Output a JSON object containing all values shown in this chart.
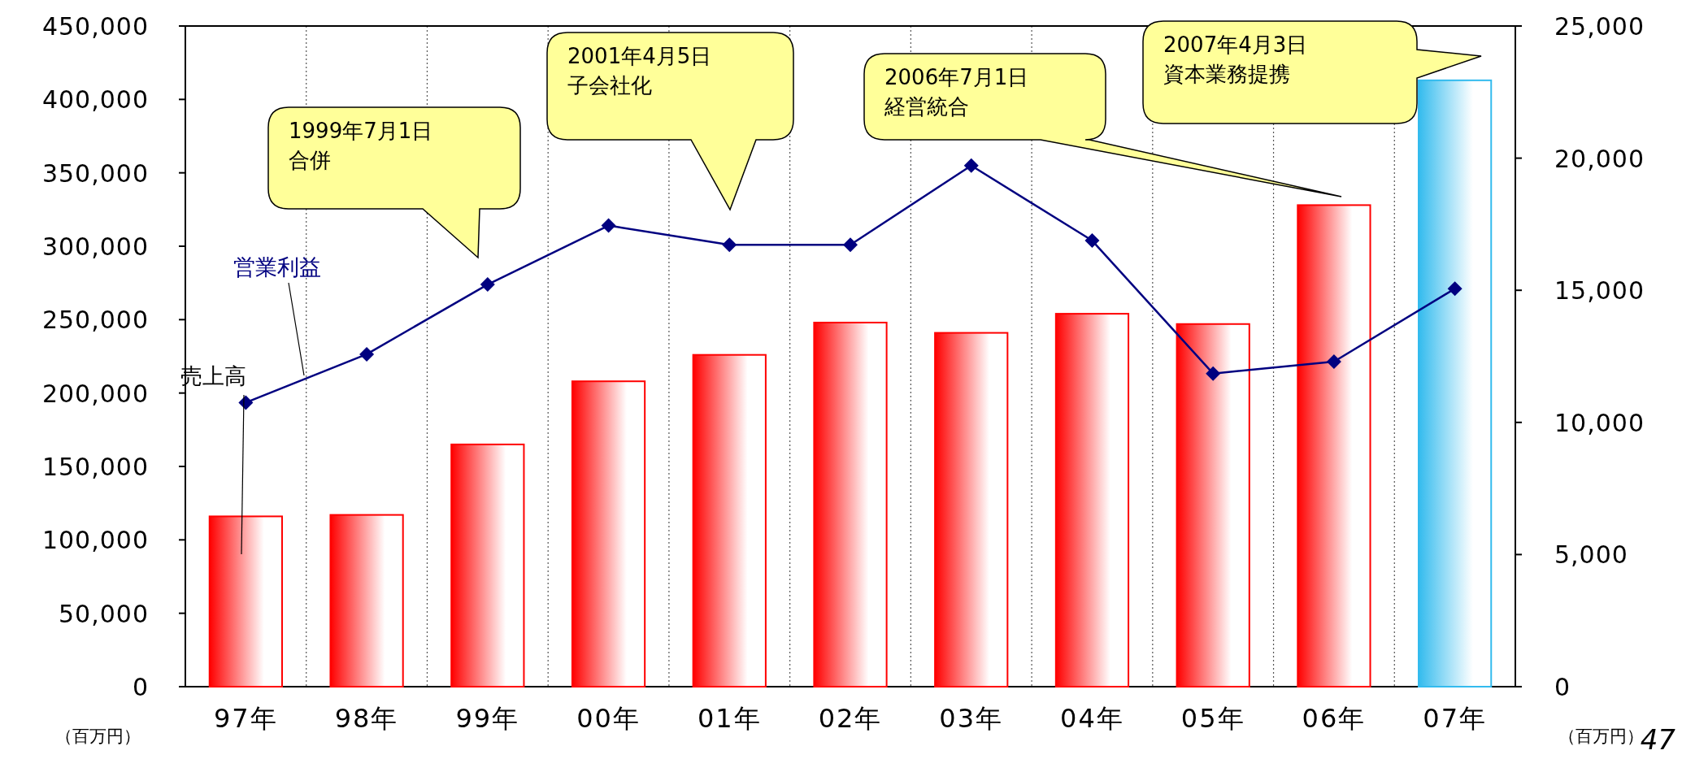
{
  "chart_data": {
    "type": "bar",
    "categories": [
      "97年",
      "98年",
      "99年",
      "00年",
      "01年",
      "02年",
      "03年",
      "04年",
      "05年",
      "06年",
      "07年"
    ],
    "ylabel": "（百万円）",
    "y2label": "（百万円）",
    "ylim": [
      0,
      450000
    ],
    "yticks": [
      {
        "value": 0,
        "label": "0"
      },
      {
        "value": 50000,
        "label": "50,000"
      },
      {
        "value": 100000,
        "label": "100,000"
      },
      {
        "value": 150000,
        "label": "150,000"
      },
      {
        "value": 200000,
        "label": "200,000"
      },
      {
        "value": 250000,
        "label": "250,000"
      },
      {
        "value": 300000,
        "label": "300,000"
      },
      {
        "value": 350000,
        "label": "350,000"
      },
      {
        "value": 400000,
        "label": "400,000"
      },
      {
        "value": 450000,
        "label": "450,000"
      }
    ],
    "y2lim": [
      0,
      25000
    ],
    "y2ticks": [
      {
        "value": 0,
        "label": "0"
      },
      {
        "value": 5000,
        "label": "5,000"
      },
      {
        "value": 10000,
        "label": "10,000"
      },
      {
        "value": 15000,
        "label": "15,000"
      },
      {
        "value": 20000,
        "label": "20,000"
      },
      {
        "value": 25000,
        "label": "25,000"
      }
    ],
    "grid": "x",
    "legend": false,
    "series": [
      {
        "name": "売上高",
        "colors": [
          "#ff0000",
          "#ff0000",
          "#ff0000",
          "#ff0000",
          "#ff0000",
          "#ff0000",
          "#ff0000",
          "#ff0000",
          "#ff0000",
          "#ff0000",
          "#33bbee"
        ],
        "values": [
          116000,
          117000,
          165000,
          208000,
          226000,
          248000,
          241000,
          254000,
          247000,
          328000,
          413000
        ]
      },
      {
        "name": "営業利益",
        "type": "line",
        "axis": "y2",
        "color": "#000080",
        "marker": "diamond",
        "values": [
          10750,
          12580,
          15220,
          17450,
          16720,
          16720,
          19720,
          16880,
          11850,
          12300,
          15060
        ]
      }
    ],
    "annotations": [
      "1999年7月1日",
      "合併",
      "2001年4月5日",
      "子会社化",
      "2006年7月1日",
      "経営統合",
      "2007年4月3日",
      "資本業務提携",
      "47"
    ]
  }
}
